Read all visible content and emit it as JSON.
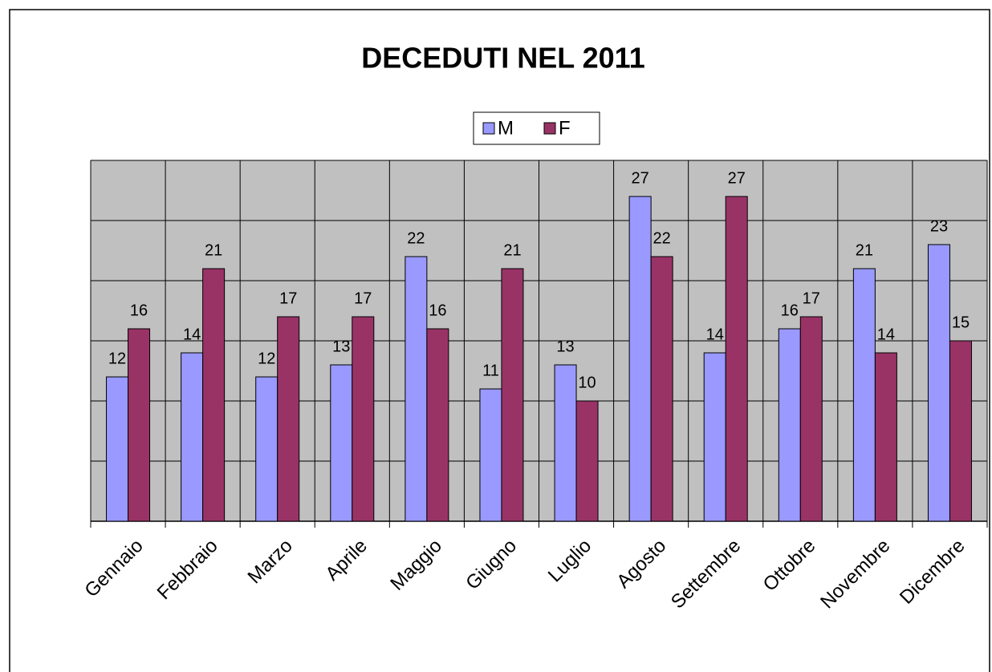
{
  "chart_data": {
    "type": "bar",
    "title": "DECEDUTI NEL 2011",
    "categories": [
      "Gennaio",
      "Febbraio",
      "Marzo",
      "Aprile",
      "Maggio",
      "Giugno",
      "Luglio",
      "Agosto",
      "Settembre",
      "Ottobre",
      "Novembre",
      "Dicembre"
    ],
    "series": [
      {
        "name": "M",
        "color": "#9999ff",
        "values": [
          12,
          14,
          12,
          13,
          22,
          11,
          13,
          27,
          14,
          16,
          21,
          23
        ]
      },
      {
        "name": "F",
        "color": "#993366",
        "values": [
          16,
          21,
          17,
          17,
          16,
          21,
          10,
          22,
          27,
          17,
          14,
          15
        ]
      }
    ],
    "ylim": [
      0,
      30
    ],
    "yticks": [
      0,
      5,
      10,
      15,
      20,
      25,
      30
    ],
    "grid": true,
    "legend": "top"
  }
}
